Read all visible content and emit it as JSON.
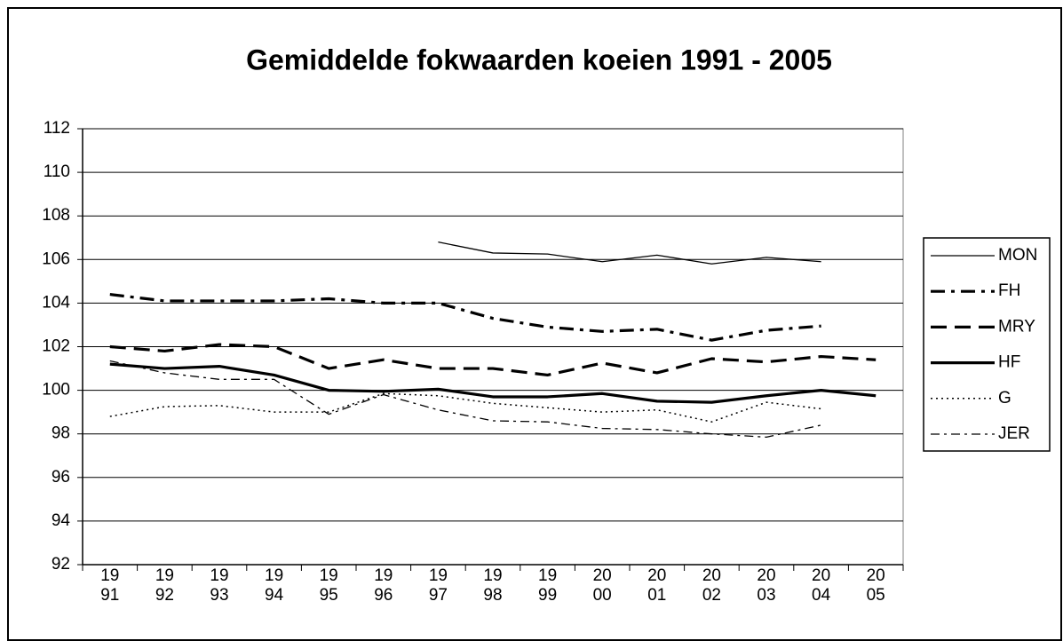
{
  "chart_data": {
    "type": "line",
    "title": "Gemiddelde fokwaarden koeien 1991 - 2005",
    "categories": [
      "1991",
      "1992",
      "1993",
      "1994",
      "1995",
      "1996",
      "1997",
      "1998",
      "1999",
      "2000",
      "2001",
      "2002",
      "2003",
      "2004",
      "2005"
    ],
    "ylim": [
      92,
      112
    ],
    "yticks": [
      92,
      94,
      96,
      98,
      100,
      102,
      104,
      106,
      108,
      110,
      112
    ],
    "grid": true,
    "legend": "right",
    "series": [
      {
        "name": "MON",
        "color": "#000000",
        "style": "thin-solid",
        "values": [
          null,
          null,
          null,
          null,
          null,
          null,
          106.8,
          106.3,
          106.25,
          105.9,
          106.2,
          105.8,
          106.1,
          105.9,
          null
        ]
      },
      {
        "name": "FH",
        "color": "#000000",
        "style": "thick-dash-dot",
        "values": [
          104.4,
          104.1,
          104.1,
          104.1,
          104.2,
          104.0,
          104.0,
          103.3,
          102.9,
          102.7,
          102.8,
          102.3,
          102.75,
          102.95,
          null
        ]
      },
      {
        "name": "MRY",
        "color": "#000000",
        "style": "thick-dash",
        "values": [
          102.0,
          101.8,
          102.1,
          102.0,
          101.0,
          101.4,
          101.0,
          101.0,
          100.7,
          101.25,
          100.8,
          101.45,
          101.3,
          101.55,
          101.4
        ]
      },
      {
        "name": "HF",
        "color": "#000000",
        "style": "thick-solid",
        "values": [
          101.2,
          101.0,
          101.1,
          100.7,
          100.0,
          99.95,
          100.05,
          99.7,
          99.7,
          99.85,
          99.5,
          99.45,
          99.75,
          100.0,
          99.75
        ]
      },
      {
        "name": "G",
        "color": "#000000",
        "style": "thin-dotted",
        "values": [
          98.8,
          99.25,
          99.3,
          99.0,
          99.0,
          99.85,
          99.75,
          99.4,
          99.2,
          99.0,
          99.1,
          98.55,
          99.45,
          99.15,
          null
        ]
      },
      {
        "name": "JER",
        "color": "#000000",
        "style": "thin-dash-dot",
        "values": [
          101.35,
          100.8,
          100.5,
          100.5,
          98.9,
          99.8,
          99.1,
          98.6,
          98.55,
          98.25,
          98.2,
          98.0,
          97.85,
          98.4,
          null
        ]
      }
    ]
  }
}
